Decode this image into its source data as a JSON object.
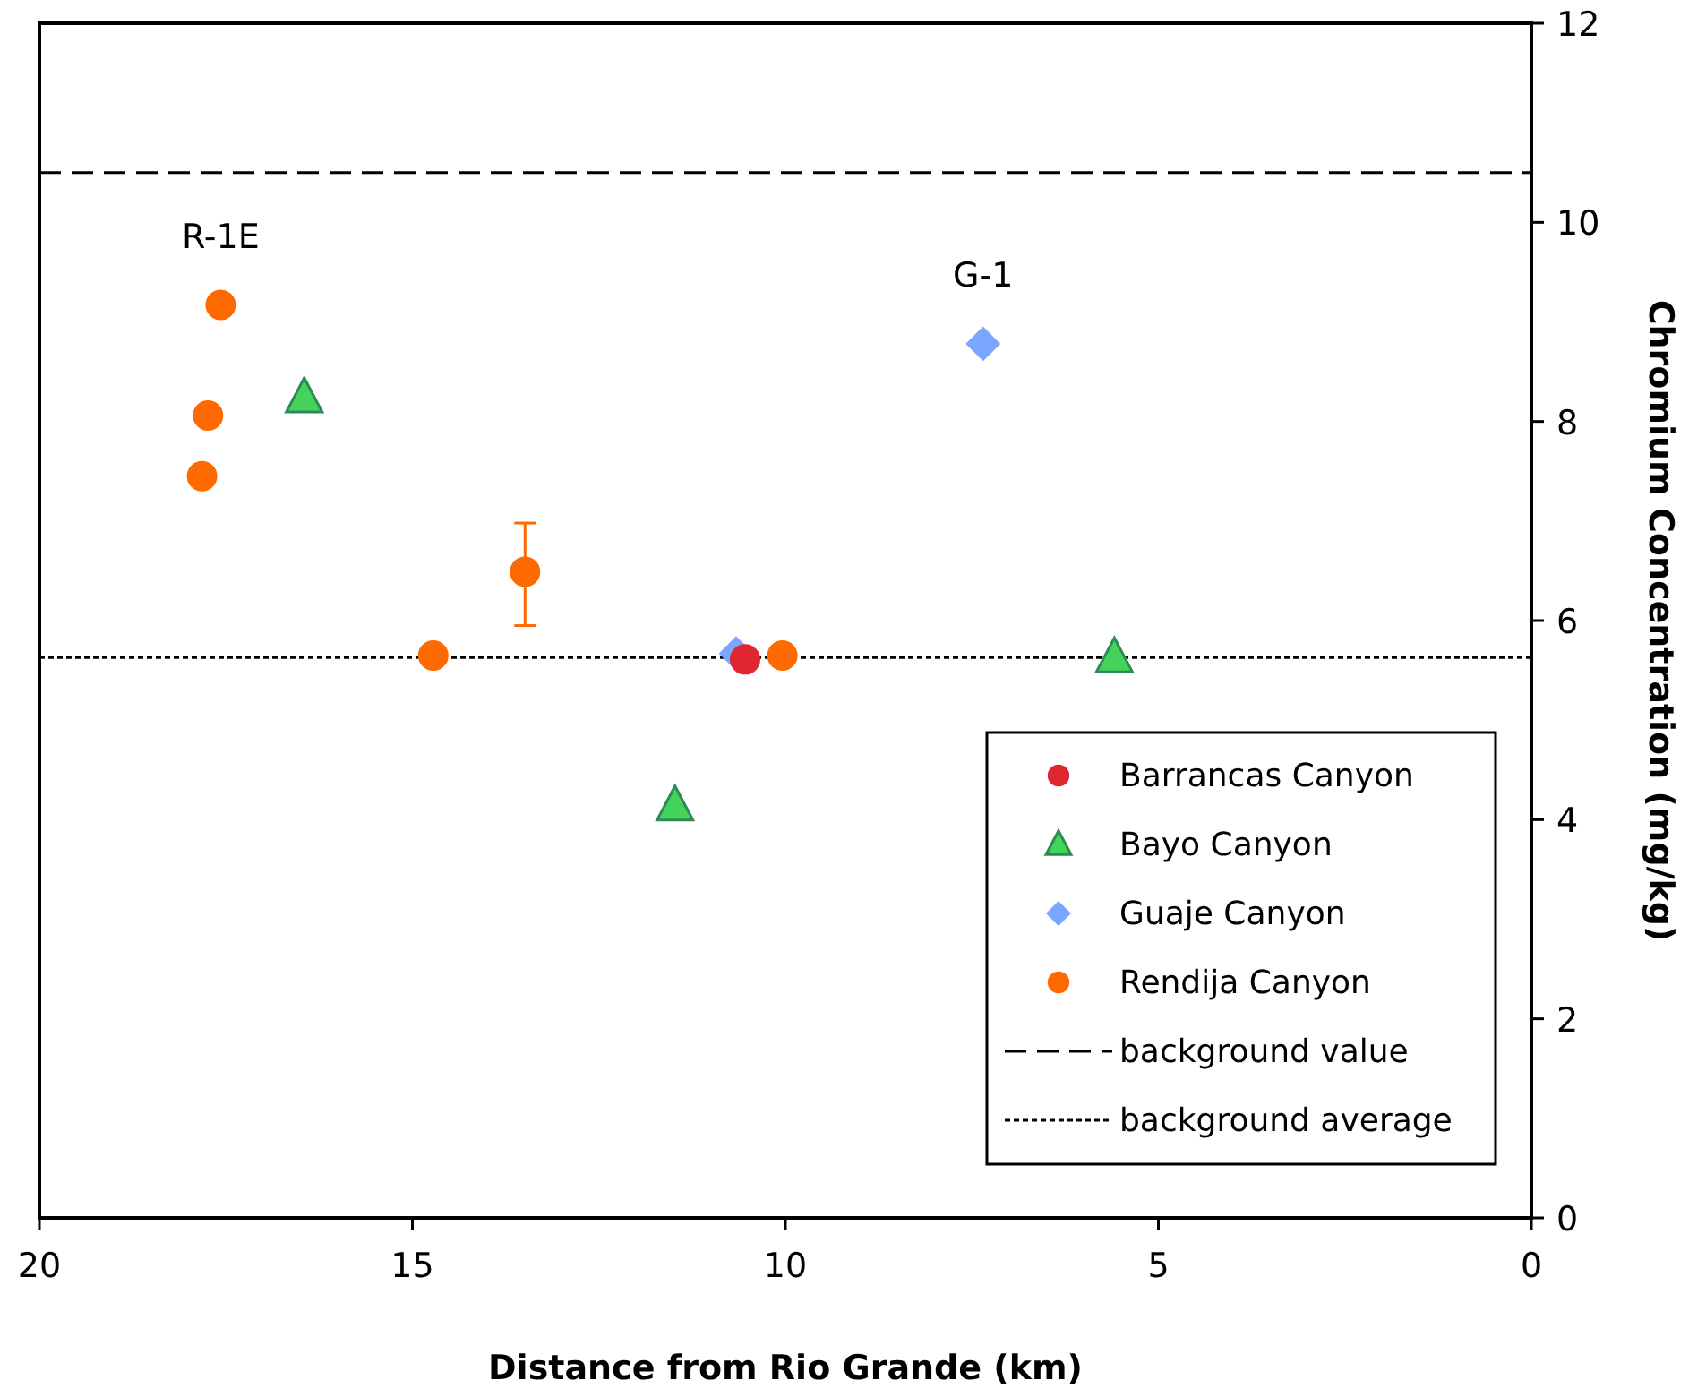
{
  "chart_data": {
    "type": "scatter",
    "xlabel": "Distance from Rio Grande (km)",
    "ylabel": "Chromium Concentration (mg/kg)",
    "xlim": [
      20,
      0
    ],
    "xticks": [
      20,
      15,
      10,
      5,
      0
    ],
    "ylim": [
      0,
      12
    ],
    "yticks": [
      0,
      2,
      4,
      6,
      8,
      10,
      12
    ],
    "grid": false,
    "legend": "bottom right",
    "series": [
      {
        "name": "Barrancas Canyon",
        "color": "#e0262e",
        "marker": "circle",
        "x": [
          10.54
        ],
        "values": [
          5.61
        ]
      },
      {
        "name": "Bayo Canyon",
        "color": "#44d45a",
        "marker": "triangle",
        "x": [
          16.45,
          11.48,
          5.59
        ],
        "values": [
          8.24,
          4.14,
          5.63
        ]
      },
      {
        "name": "Guaje Canyon",
        "color": "#7aa6ff",
        "marker": "diamond",
        "x": [
          7.35,
          10.66
        ],
        "values": [
          8.78,
          5.67
        ]
      },
      {
        "name": "Rendija Canyon",
        "color": "#ff6a00",
        "marker": "circle",
        "x": [
          17.57,
          17.74,
          17.82,
          14.72,
          13.49,
          10.04
        ],
        "values": [
          9.17,
          8.06,
          7.45,
          5.65,
          6.49,
          5.65
        ],
        "errors": [
          null,
          null,
          null,
          null,
          [
            5.95,
            6.98
          ],
          null
        ]
      }
    ],
    "ref_lines": [
      {
        "axis": "y",
        "value": 10.5,
        "label": "background value",
        "line_style": "dashed",
        "color": "#000000"
      },
      {
        "axis": "y",
        "value": 5.63,
        "label": "background average",
        "line_style": "dotted",
        "color": "#000000"
      }
    ],
    "annotations": [
      {
        "text": "R-1E",
        "x": 17.57,
        "y": 9.17
      },
      {
        "text": "G-1",
        "x": 7.35,
        "y": 8.78
      }
    ]
  }
}
